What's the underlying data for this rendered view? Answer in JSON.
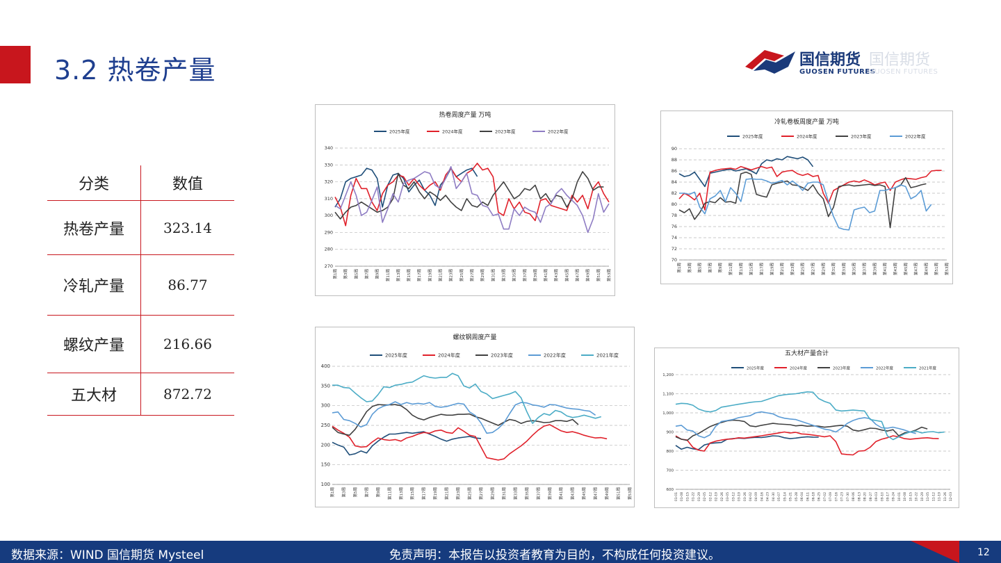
{
  "page": {
    "title": "3.2 热卷产量",
    "logo_cn": "国信期货",
    "logo_en": "GUOSEN FUTURES",
    "page_number": "12",
    "source": "数据来源：WIND 国信期货 Mysteel",
    "disclaimer": "免责声明：本报告以投资者教育为目的，不构成任何投资建议。",
    "colors": {
      "red": "#c8161d",
      "navy": "#163b7e",
      "title": "#1f3f8f"
    }
  },
  "table": {
    "headers": [
      "分类",
      "数值"
    ],
    "rows": [
      {
        "name": "热卷产量",
        "value": "323.14"
      },
      {
        "name": "冷轧产量",
        "value": "86.77"
      },
      {
        "name": "螺纹产量",
        "value": "216.66"
      },
      {
        "name": "五大材",
        "value": "872.72"
      }
    ]
  },
  "chart_data": [
    {
      "id": "hrc",
      "type": "line",
      "title": "热卷周度产量  万吨",
      "ylim": [
        270,
        340
      ],
      "yticks": [
        270,
        280,
        290,
        300,
        310,
        320,
        330,
        340
      ],
      "xticks": [
        "第1周",
        "第3周",
        "第5周",
        "第7周",
        "第9周",
        "第11周",
        "第13周",
        "第15周",
        "第17周",
        "第19周",
        "第21周",
        "第23周",
        "第25周",
        "第27周",
        "第29周",
        "第31周",
        "第33周",
        "第35周",
        "第37周",
        "第39周",
        "第41周",
        "第43周",
        "第45周",
        "第47周",
        "第49周",
        "第51周",
        "第53周"
      ],
      "series": [
        {
          "name": "2025年度",
          "color": "#1f4e79",
          "values": [
            305,
            310,
            320,
            322,
            323,
            324,
            328,
            327,
            322,
            305,
            318,
            324,
            325,
            322,
            314,
            318,
            321,
            315,
            312,
            306,
            318,
            322,
            328,
            323,
            325,
            327,
            328,
            323.14
          ]
        },
        {
          "name": "2024年度",
          "color": "#e0202a",
          "values": [
            311,
            305,
            294,
            312,
            322,
            316,
            316,
            308,
            303,
            313,
            318,
            320,
            324,
            323,
            318,
            322,
            318,
            315,
            318,
            320,
            315,
            324,
            328,
            323,
            320,
            325,
            327,
            331,
            327,
            328,
            323,
            302,
            300,
            310,
            304,
            308,
            302,
            301,
            297,
            309,
            310,
            306,
            305,
            304,
            303,
            312,
            308,
            312,
            304,
            316,
            320,
            313,
            308
          ]
        },
        {
          "name": "2023年度",
          "color": "#404040",
          "values": [
            302,
            298,
            302,
            305,
            306,
            308,
            306,
            304,
            302,
            303,
            305,
            310,
            325,
            318,
            316,
            320,
            314,
            310,
            314,
            312,
            309,
            312,
            308,
            305,
            303,
            310,
            306,
            305,
            308,
            306,
            312,
            316,
            320,
            315,
            310,
            312,
            316,
            315,
            318,
            310,
            313,
            308,
            312,
            311,
            305,
            310,
            320,
            326,
            322,
            315,
            317,
            317
          ]
        },
        {
          "name": "2022年度",
          "color": "#8e7cc3",
          "values": [
            306,
            304,
            312,
            320,
            312,
            300,
            302,
            309,
            317,
            296,
            304,
            313,
            308,
            319,
            321,
            322,
            324,
            326,
            325,
            318,
            316,
            322,
            329,
            316,
            320,
            325,
            313,
            312,
            306,
            305,
            300,
            301,
            292,
            292,
            304,
            300,
            305,
            303,
            302,
            296,
            305,
            307,
            313,
            316,
            312,
            309,
            306,
            300,
            290,
            298,
            313,
            302,
            307
          ]
        }
      ]
    },
    {
      "id": "crc",
      "type": "line",
      "title": "冷轧卷板周度产量  万吨",
      "ylim": [
        70,
        90
      ],
      "yticks": [
        70,
        72,
        74,
        76,
        78,
        80,
        82,
        84,
        86,
        88,
        90
      ],
      "xticks": [
        "第1周",
        "第3周",
        "第5周",
        "第7周",
        "第9周",
        "第11周",
        "第13周",
        "第15周",
        "第17周",
        "第19周",
        "第21周",
        "第23周",
        "第25周",
        "第27周",
        "第29周",
        "第31周",
        "第33周",
        "第35周",
        "第37周",
        "第39周",
        "第41周",
        "第43周",
        "第45周",
        "第47周",
        "第49周",
        "第51周",
        "第53周"
      ],
      "series": [
        {
          "name": "2025年度",
          "color": "#1f4e79",
          "values": [
            85.5,
            85,
            85.2,
            85.8,
            84.5,
            83.2,
            85.6,
            85.8,
            86,
            86.2,
            86.3,
            86,
            86.2,
            86.4,
            86,
            85.5,
            87.3,
            88,
            87.8,
            88.2,
            88,
            88.6,
            88.4,
            88.2,
            88.5,
            88,
            86.77
          ]
        },
        {
          "name": "2024年度",
          "color": "#e0202a",
          "values": [
            81,
            82,
            81.5,
            80.8,
            82,
            79,
            85.8,
            86.1,
            86.3,
            86.4,
            86.5,
            86.3,
            86.8,
            86.5,
            86.2,
            86.5,
            86.8,
            86.5,
            86.7,
            85,
            85.8,
            86,
            86.1,
            85.5,
            85.2,
            85.5,
            85,
            85.2,
            82,
            80.2,
            82.5,
            83,
            83.5,
            84,
            84.2,
            84,
            84.4,
            84,
            83.5,
            83.8,
            84,
            82.5,
            84,
            84.4,
            84.7,
            84.6,
            84.5,
            84.8,
            85,
            86,
            86.1,
            86.1
          ]
        },
        {
          "name": "2023年度",
          "color": "#404040",
          "values": [
            79,
            78.5,
            79.2,
            77.3,
            78.5,
            80.2,
            80.5,
            80.3,
            81.2,
            80.4,
            80.5,
            80.2,
            85.5,
            85.8,
            85.4,
            81.8,
            81.5,
            81.3,
            83.5,
            83.8,
            84,
            84.2,
            83.5,
            83.4,
            83,
            82.5,
            83.5,
            82,
            81,
            77.8,
            79.5,
            83.2,
            83.4,
            83.5,
            83.3,
            83.4,
            83.5,
            83.6,
            83.4,
            83.5,
            83.2,
            75.8,
            83,
            83.4,
            84.8,
            83,
            83.2,
            83.5,
            83.7
          ]
        },
        {
          "name": "2022年度",
          "color": "#5b9bd5",
          "values": [
            82,
            82,
            81.8,
            82.2,
            79.5,
            78.3,
            81,
            81.5,
            82.5,
            80.5,
            83,
            82,
            80.5,
            84.5,
            84.6,
            84.5,
            84.5,
            84.2,
            83.8,
            84,
            84.3,
            83.5,
            84.2,
            83.5,
            82.5,
            83.8,
            84,
            84,
            83.5,
            80.5,
            77.8,
            75.8,
            75.5,
            75.4,
            79,
            79.3,
            79.5,
            78.5,
            78.8,
            82.5,
            82.5,
            82.8,
            83,
            83.5,
            83.2,
            81,
            81.5,
            82.5,
            78.8,
            80
          ]
        }
      ]
    },
    {
      "id": "rebar",
      "type": "line",
      "title": "螺纹钢周度产量",
      "ylim": [
        100,
        400
      ],
      "yticks": [
        100,
        150,
        200,
        250,
        300,
        350,
        400
      ],
      "xticks": [
        "第1周",
        "第3周",
        "第5周",
        "第7周",
        "第9周",
        "第11周",
        "第13周",
        "第15周",
        "第17周",
        "第19周",
        "第21周",
        "第23周",
        "第25周",
        "第27周",
        "第29周",
        "第31周",
        "第33周",
        "第35周",
        "第37周",
        "第39周",
        "第41周",
        "第43周",
        "第45周",
        "第47周",
        "第49周",
        "第51周",
        "第53周"
      ],
      "series": [
        {
          "name": "2025年度",
          "color": "#1f4e79",
          "values": [
            207,
            200,
            195,
            175,
            178,
            185,
            180,
            198,
            210,
            220,
            228,
            228,
            230,
            232,
            230,
            232,
            234,
            228,
            222,
            215,
            210,
            215,
            218,
            220,
            222,
            218,
            216.66
          ]
        },
        {
          "name": "2024年度",
          "color": "#e0202a",
          "values": [
            248,
            238,
            230,
            220,
            198,
            195,
            196,
            208,
            218,
            214,
            212,
            214,
            210,
            218,
            222,
            228,
            232,
            230,
            236,
            238,
            232,
            230,
            244,
            235,
            225,
            222,
            195,
            168,
            165,
            162,
            165,
            178,
            188,
            198,
            210,
            225,
            238,
            248,
            252,
            244,
            236,
            232,
            234,
            230,
            225,
            221,
            218,
            219,
            216
          ]
        },
        {
          "name": "2023年度",
          "color": "#404040",
          "values": [
            245,
            232,
            228,
            225,
            240,
            262,
            285,
            298,
            303,
            302,
            302,
            303,
            300,
            290,
            276,
            268,
            264,
            270,
            274,
            278,
            276,
            276,
            278,
            278,
            279,
            272,
            268,
            262,
            256,
            250,
            258,
            265,
            262,
            255,
            260,
            262,
            260,
            257,
            258,
            262,
            262,
            260,
            265,
            252
          ]
        },
        {
          "name": "2022年度",
          "color": "#5b9bd5",
          "values": [
            282,
            284,
            265,
            262,
            255,
            246,
            252,
            278,
            292,
            299,
            303,
            310,
            303,
            308,
            304,
            306,
            304,
            308,
            298,
            296,
            298,
            302,
            306,
            304,
            284,
            275,
            256,
            230,
            232,
            242,
            256,
            280,
            302,
            308,
            307,
            302,
            300,
            296,
            303,
            302,
            298,
            294,
            292,
            291,
            288,
            286,
            276
          ]
        },
        {
          "name": "2021年度",
          "color": "#4bacc6",
          "values": [
            352,
            352,
            346,
            345,
            332,
            320,
            310,
            312,
            328,
            348,
            346,
            352,
            354,
            358,
            360,
            368,
            376,
            372,
            370,
            372,
            372,
            382,
            376,
            350,
            345,
            355,
            336,
            330,
            318,
            322,
            326,
            330,
            336,
            320,
            285,
            255,
            270,
            280,
            276,
            288,
            284,
            274,
            270,
            272,
            276,
            272,
            268,
            272
          ]
        }
      ]
    },
    {
      "id": "five",
      "type": "line",
      "title": "五大材产量合计",
      "ylim": [
        600,
        1200
      ],
      "yticks": [
        600,
        700,
        800,
        900,
        1000,
        1100,
        1200
      ],
      "ytick_labels": [
        "600",
        "700",
        "800",
        "900",
        "1,000",
        "1,100",
        "1,200"
      ],
      "xticks": [
        "01-01",
        "01-08",
        "01-15",
        "01-22",
        "01-29",
        "02-05",
        "02-12",
        "02-19",
        "02-26",
        "03-05",
        "03-12",
        "03-19",
        "03-26",
        "04-02",
        "04-09",
        "04-16",
        "04-23",
        "04-30",
        "05-07",
        "05-14",
        "05-21",
        "05-28",
        "06-04",
        "06-11",
        "06-18",
        "06-25",
        "07-02",
        "07-09",
        "07-16",
        "07-23",
        "07-30",
        "08-06",
        "08-13",
        "08-20",
        "08-27",
        "09-03",
        "09-10",
        "09-17",
        "09-24",
        "10-01",
        "10-08",
        "10-15",
        "10-22",
        "10-29",
        "11-05",
        "11-12",
        "11-19",
        "11-26",
        "12-03"
      ],
      "series": [
        {
          "name": "2025年度",
          "color": "#1f4e79",
          "values": [
            830,
            810,
            820,
            812,
            808,
            832,
            840,
            843,
            845,
            862,
            865,
            868,
            866,
            870,
            872,
            871,
            875,
            880,
            878,
            870,
            865,
            868,
            872,
            875,
            873,
            872.72
          ]
        },
        {
          "name": "2024年度",
          "color": "#e0202a",
          "values": [
            880,
            862,
            858,
            820,
            805,
            800,
            842,
            852,
            858,
            862,
            864,
            870,
            868,
            872,
            876,
            880,
            885,
            890,
            895,
            900,
            895,
            898,
            890,
            888,
            884,
            880,
            875,
            880,
            850,
            785,
            782,
            780,
            800,
            802,
            820,
            850,
            862,
            870,
            880,
            875,
            865,
            862,
            865,
            868,
            870,
            866,
            865
          ]
        },
        {
          "name": "2023年度",
          "color": "#404040",
          "values": [
            875,
            862,
            856,
            880,
            892,
            910,
            928,
            940,
            950,
            958,
            962,
            960,
            955,
            932,
            928,
            935,
            940,
            945,
            942,
            940,
            938,
            932,
            935,
            930,
            932,
            930,
            925,
            928,
            932,
            935,
            930,
            910,
            905,
            912,
            920,
            918,
            910,
            905,
            912,
            880,
            895,
            900,
            910,
            925,
            916
          ]
        },
        {
          "name": "2022年度",
          "color": "#5b9bd5",
          "values": [
            930,
            935,
            910,
            905,
            880,
            870,
            885,
            930,
            955,
            960,
            965,
            975,
            980,
            985,
            1000,
            1005,
            1000,
            995,
            980,
            972,
            968,
            965,
            955,
            945,
            935,
            925,
            915,
            910,
            900,
            920,
            945,
            960,
            970,
            975,
            970,
            940,
            922,
            920,
            925,
            918,
            910,
            900,
            892
          ]
        },
        {
          "name": "2021年度",
          "color": "#4bacc6",
          "values": [
            1045,
            1050,
            1048,
            1040,
            1020,
            1010,
            1005,
            1012,
            1030,
            1035,
            1040,
            1045,
            1050,
            1055,
            1058,
            1060,
            1070,
            1080,
            1090,
            1095,
            1098,
            1100,
            1105,
            1110,
            1108,
            1075,
            1060,
            1050,
            1015,
            1010,
            1012,
            1015,
            1012,
            1010,
            965,
            960,
            955,
            880,
            860,
            875,
            890,
            900,
            905,
            895,
            900,
            902,
            896,
            900
          ]
        }
      ]
    }
  ]
}
